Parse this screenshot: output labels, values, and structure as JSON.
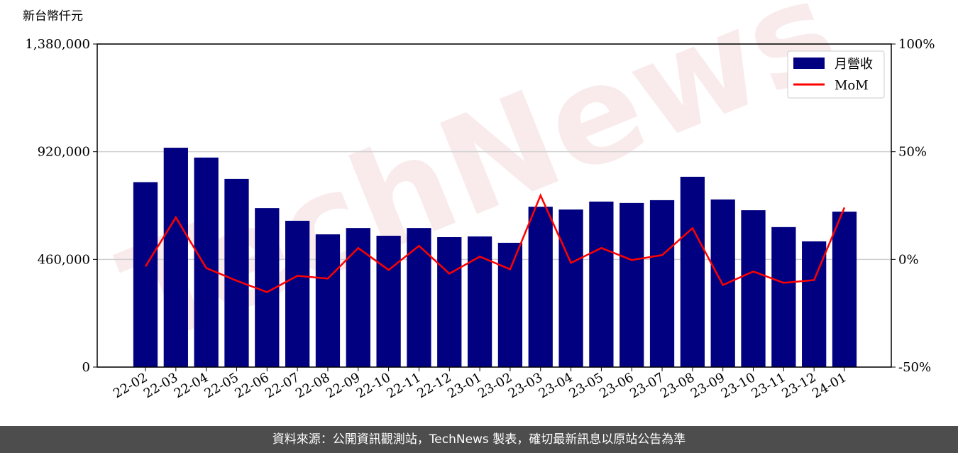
{
  "chart_data": {
    "type": "bar",
    "y_label": "新台幣仟元",
    "watermark": "TechNews",
    "categories": [
      "22-02",
      "22-03",
      "22-04",
      "22-05",
      "22-06",
      "22-07",
      "22-08",
      "22-09",
      "22-10",
      "22-11",
      "22-12",
      "23-01",
      "23-02",
      "23-03",
      "23-04",
      "23-05",
      "23-06",
      "23-07",
      "23-08",
      "23-09",
      "23-10",
      "23-11",
      "23-12",
      "24-01"
    ],
    "series": [
      {
        "name": "月營收",
        "type": "bar",
        "color": "#000080",
        "values": [
          790000,
          937000,
          895000,
          804000,
          679000,
          625000,
          567000,
          594000,
          561000,
          594000,
          555000,
          558000,
          531000,
          685000,
          673000,
          707000,
          701000,
          713000,
          813000,
          716000,
          670000,
          598000,
          537000,
          664000
        ]
      },
      {
        "name": "MoM",
        "type": "line",
        "color": "#ff0000",
        "axis": "y2",
        "values": [
          -3.3,
          19.5,
          -4,
          -9.9,
          -15.2,
          -7.6,
          -8.9,
          5.3,
          -4.9,
          6.3,
          -6.6,
          1.3,
          -4.6,
          29.7,
          -1.6,
          5.3,
          -0.3,
          2,
          14.5,
          -11.9,
          -5.6,
          -10.9,
          -9.6,
          24.1
        ]
      }
    ],
    "ylim": [
      0,
      1380000
    ],
    "yticks": [
      {
        "value": 0,
        "label": "0"
      },
      {
        "value": 460000,
        "label": "460,000"
      },
      {
        "value": 920000,
        "label": "920,000"
      },
      {
        "value": 1380000,
        "label": "1,380,000"
      }
    ],
    "y2lim": [
      -50,
      100
    ],
    "y2ticks": [
      {
        "value": -50,
        "label": "-50%"
      },
      {
        "value": 0,
        "label": "0%"
      },
      {
        "value": 50,
        "label": "50%"
      },
      {
        "value": 100,
        "label": "100%"
      }
    ],
    "grid": true,
    "legend": "upper right"
  },
  "footer": {
    "source": "資料來源：公開資訊觀測站，TechNews 製表，確切最新訊息以原站公告為準"
  }
}
